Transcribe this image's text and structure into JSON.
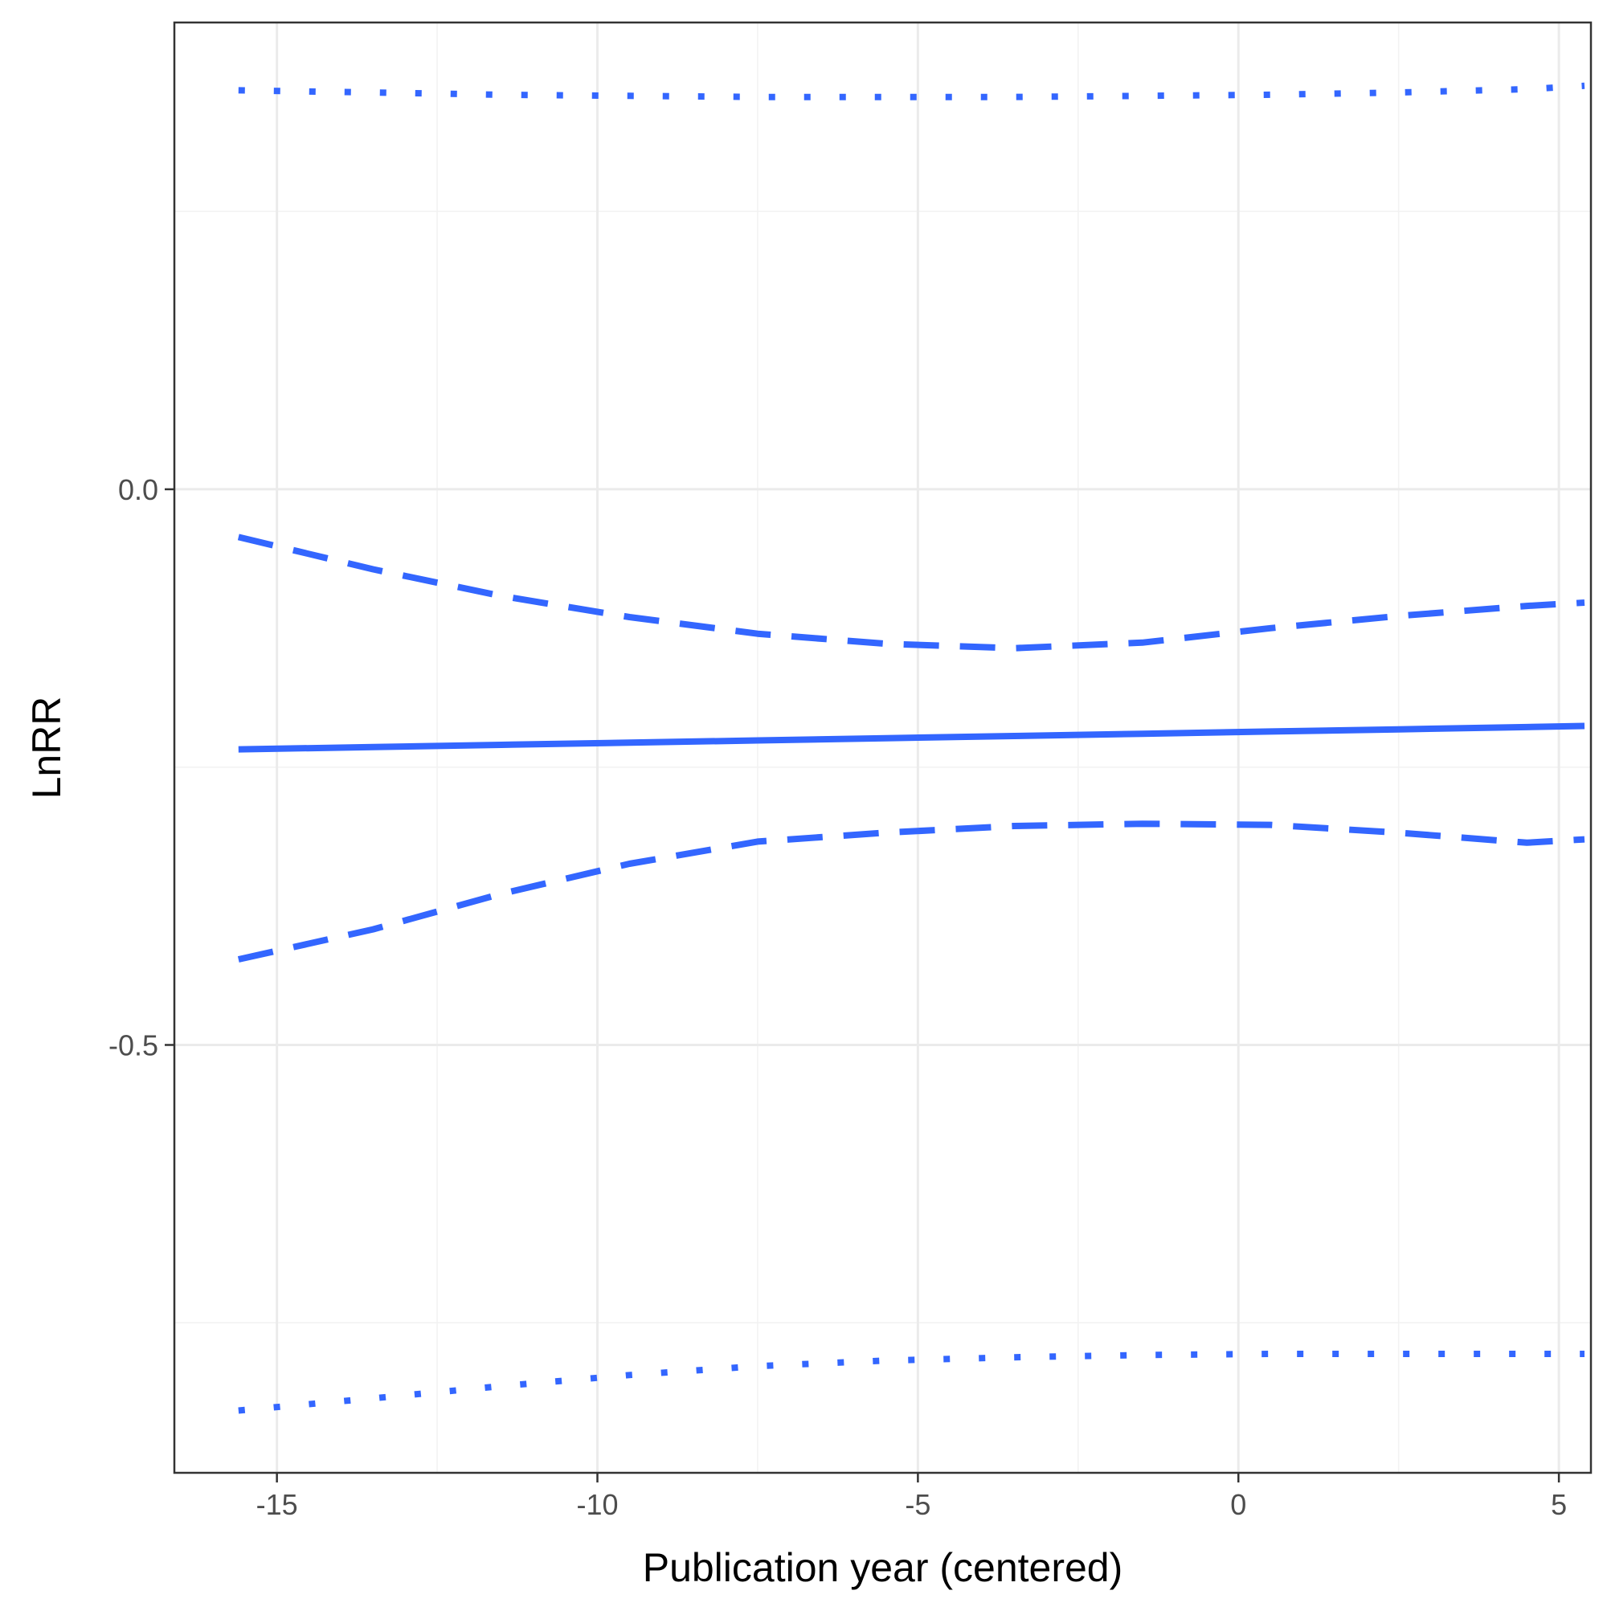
{
  "chart_data": {
    "type": "line",
    "title": "",
    "xlabel": "Publication year (centered)",
    "ylabel": "LnRR",
    "xlim": [
      -16.6,
      5.5
    ],
    "ylim": [
      -0.885,
      0.42
    ],
    "x_ticks": [
      -15,
      -10,
      -5,
      0,
      5
    ],
    "x_tick_labels": [
      "-15",
      "-10",
      "-5",
      "0",
      "5"
    ],
    "y_ticks": [
      0.0,
      -0.5
    ],
    "y_tick_labels": [
      "0.0",
      "-0.5"
    ],
    "y_minor_gridlines": [
      0.25,
      -0.25,
      -0.75
    ],
    "x_minor_gridlines": [
      -12.5,
      -7.5,
      -2.5,
      2.5
    ],
    "grid": true,
    "legend": "none",
    "line_color": "#3366FF",
    "x": [
      -15.6,
      -13.5,
      -11.5,
      -9.5,
      -7.5,
      -5.5,
      -3.5,
      -1.5,
      0.5,
      2.5,
      4.5,
      5.4
    ],
    "series": [
      {
        "style": "solid",
        "values": [
          -0.234,
          -0.232,
          -0.23,
          -0.228,
          -0.226,
          -0.224,
          -0.222,
          -0.22,
          -0.218,
          -0.216,
          -0.214,
          -0.213
        ]
      },
      {
        "style": "dashed",
        "values": [
          -0.043,
          -0.072,
          -0.096,
          -0.115,
          -0.13,
          -0.139,
          -0.143,
          -0.138,
          -0.125,
          -0.114,
          -0.105,
          -0.102
        ]
      },
      {
        "style": "dashed",
        "values": [
          -0.423,
          -0.396,
          -0.364,
          -0.337,
          -0.317,
          -0.309,
          -0.303,
          -0.301,
          -0.302,
          -0.309,
          -0.318,
          -0.315
        ]
      },
      {
        "style": "dotted",
        "values": [
          0.359,
          0.357,
          0.355,
          0.354,
          0.353,
          0.353,
          0.353,
          0.354,
          0.355,
          0.357,
          0.36,
          0.363
        ]
      },
      {
        "style": "dotted",
        "values": [
          -0.829,
          -0.818,
          -0.807,
          -0.797,
          -0.789,
          -0.784,
          -0.781,
          -0.779,
          -0.778,
          -0.778,
          -0.778,
          -0.778
        ]
      }
    ]
  }
}
